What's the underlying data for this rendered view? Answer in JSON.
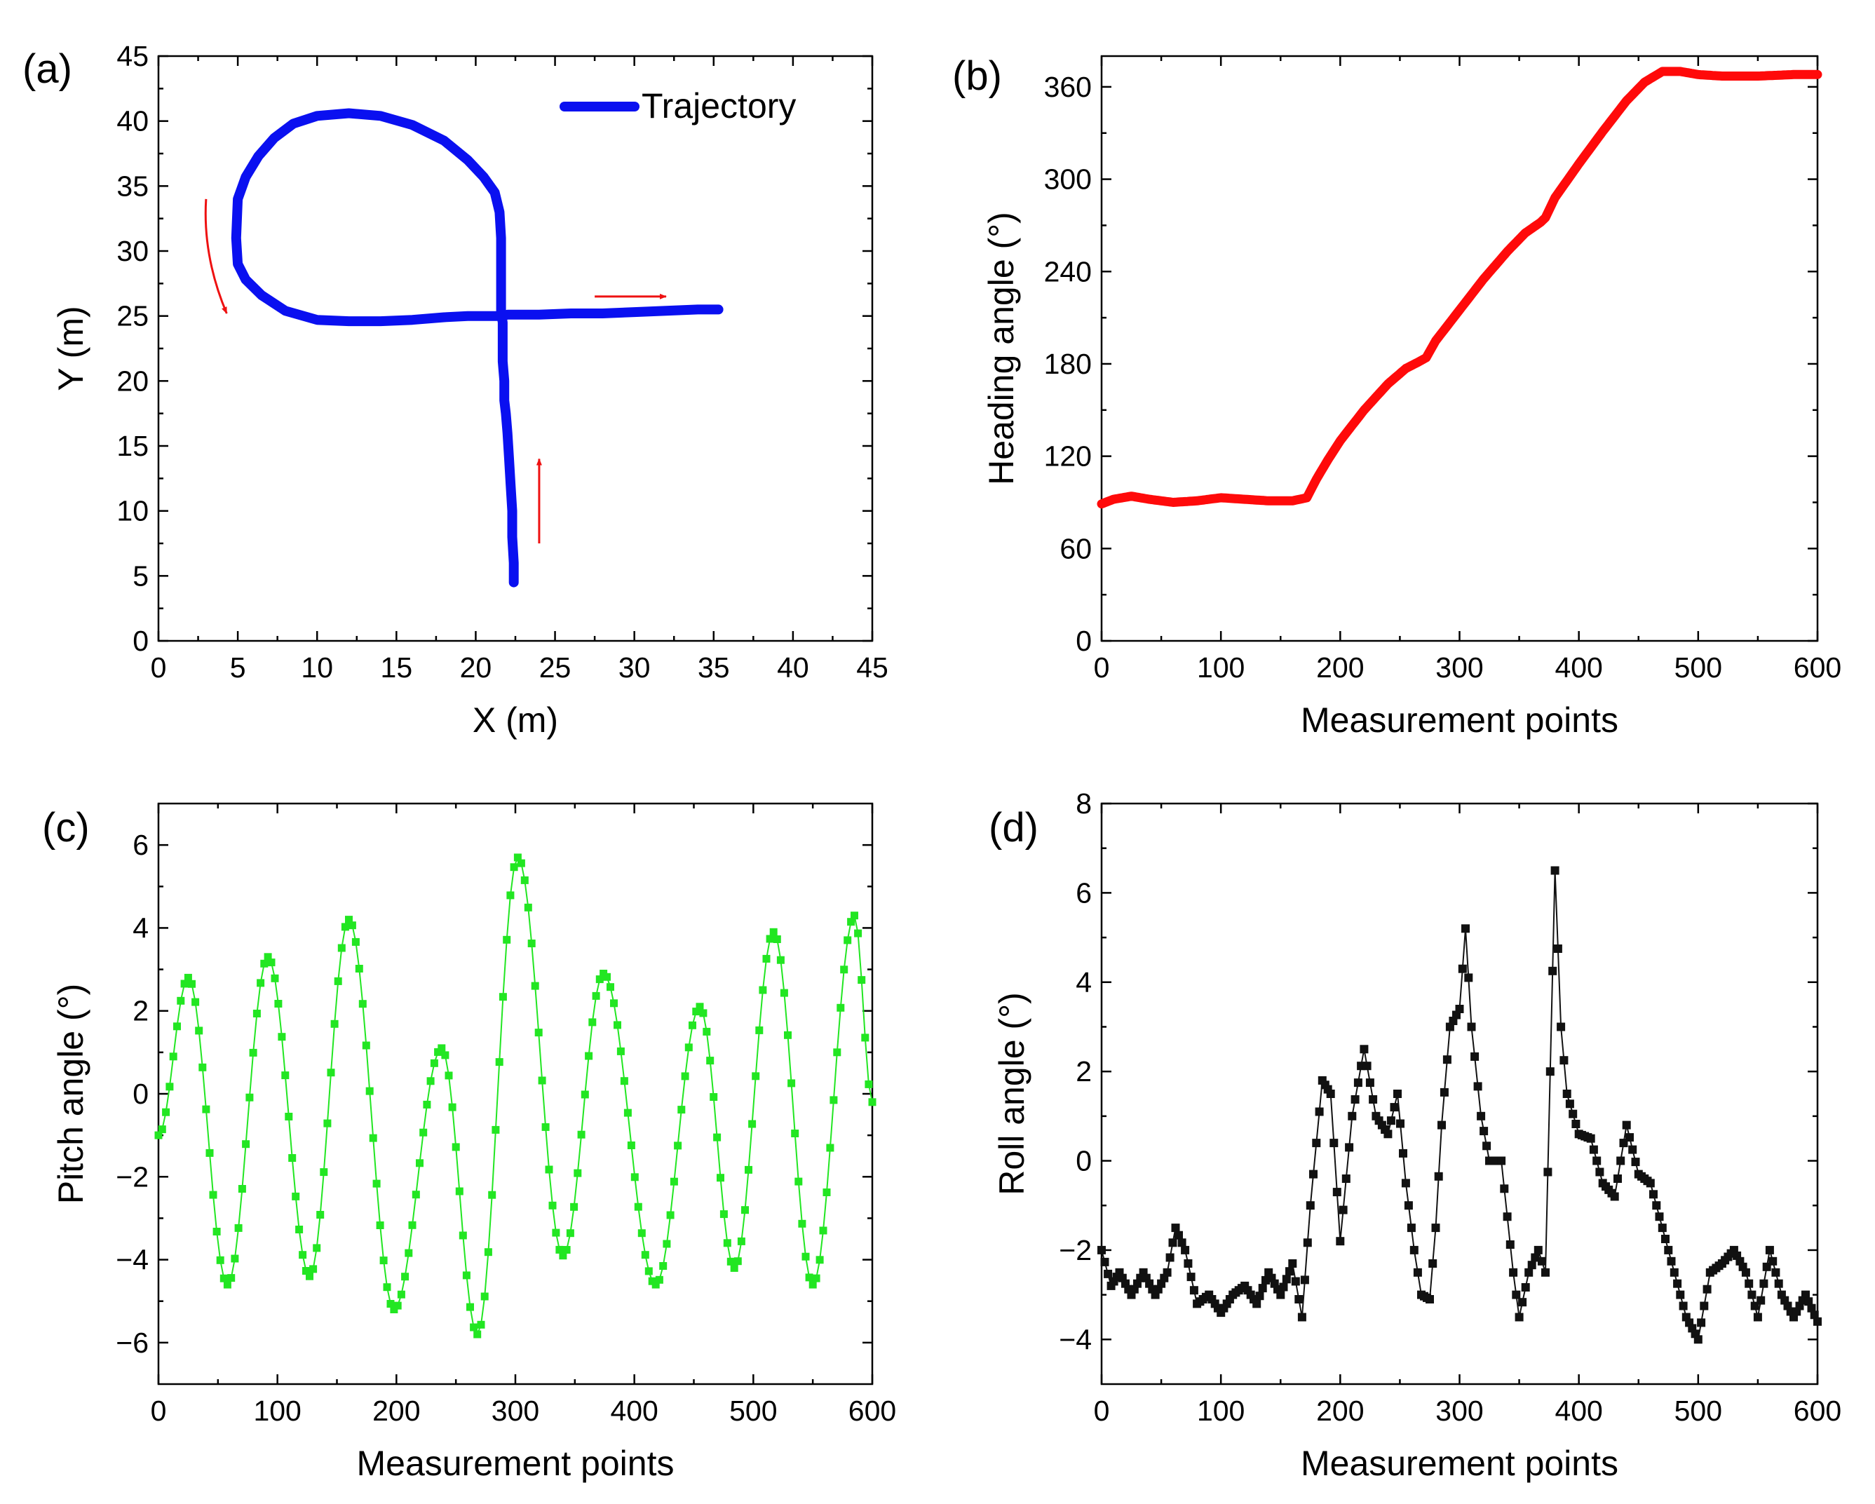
{
  "figure": {
    "panels": [
      "(a)",
      "(b)",
      "(c)",
      "(d)"
    ]
  },
  "colors": {
    "trajectory": "#0a10f0",
    "heading": "#ff0a0a",
    "pitch": "#22e622",
    "roll": "#111111",
    "arrow": "#ee1111"
  },
  "chart_data": [
    {
      "panel": "(a)",
      "type": "line",
      "title": "",
      "xlabel": "X (m)",
      "ylabel": "Y (m)",
      "xlim": [
        0,
        45
      ],
      "ylim": [
        0,
        45
      ],
      "xticks": [
        0,
        5,
        10,
        15,
        20,
        25,
        30,
        35,
        40,
        45
      ],
      "yticks": [
        0,
        5,
        10,
        15,
        20,
        25,
        30,
        35,
        40,
        45
      ],
      "legend": {
        "label": "Trajectory",
        "placement": "top-right"
      },
      "annotations": [
        {
          "type": "arrow",
          "meaning": "direction of travel",
          "x": [
            24,
            24
          ],
          "y": [
            7.5,
            14
          ]
        },
        {
          "type": "arrow",
          "meaning": "direction of travel",
          "x": [
            27.5,
            32
          ],
          "y": [
            26.5,
            26.5
          ]
        },
        {
          "type": "arrow",
          "meaning": "direction of travel (curved)",
          "x": [
            3,
            4.3
          ],
          "y": [
            34,
            25.2
          ]
        }
      ],
      "series": [
        {
          "name": "Trajectory",
          "x": [
            22.4,
            22.4,
            22.3,
            22.3,
            22.2,
            22.1,
            22.0,
            21.9,
            21.8,
            21.8,
            21.7,
            21.7,
            21.7,
            21.7,
            21.6,
            21.6,
            21.6,
            21.6,
            21.5,
            21.2,
            20.5,
            19.5,
            18.0,
            16.0,
            14.0,
            12.0,
            10.0,
            8.5,
            7.3,
            6.3,
            5.5,
            5.0,
            4.9,
            5.0,
            5.5,
            6.5,
            8.0,
            10.0,
            12.0,
            14.0,
            16.0,
            18.0,
            19.5,
            20.6,
            21.3,
            21.6,
            21.6,
            22.0,
            24.0,
            26.0,
            28.0,
            30.0,
            32.0,
            34.0,
            35.3
          ],
          "y": [
            4.5,
            6.0,
            8.0,
            10.0,
            12.0,
            14.0,
            16.0,
            17.5,
            18.5,
            20.0,
            21.5,
            22.5,
            23.5,
            24.5,
            25.3,
            27.0,
            29.0,
            31.0,
            33.0,
            34.5,
            35.7,
            37.0,
            38.5,
            39.7,
            40.4,
            40.6,
            40.4,
            39.8,
            38.7,
            37.3,
            35.7,
            34.0,
            31.0,
            29.0,
            27.8,
            26.6,
            25.4,
            24.7,
            24.6,
            24.6,
            24.7,
            24.9,
            25.0,
            25.0,
            25.0,
            25.0,
            25.0,
            25.1,
            25.1,
            25.2,
            25.2,
            25.3,
            25.4,
            25.5,
            25.5
          ]
        }
      ]
    },
    {
      "panel": "(b)",
      "type": "line",
      "title": "",
      "xlabel": "Measurement points",
      "ylabel": "Heading angle (°)",
      "xlim": [
        0,
        600
      ],
      "ylim": [
        0,
        380
      ],
      "xticks": [
        0,
        100,
        200,
        300,
        400,
        500,
        600
      ],
      "yticks": [
        0,
        60,
        120,
        180,
        240,
        300,
        360
      ],
      "series": [
        {
          "name": "Heading angle",
          "x": [
            0,
            10,
            25,
            40,
            60,
            80,
            100,
            120,
            140,
            160,
            172,
            180,
            190,
            200,
            220,
            240,
            255,
            265,
            272,
            280,
            300,
            320,
            340,
            355,
            368,
            372,
            380,
            400,
            420,
            440,
            455,
            470,
            485,
            500,
            520,
            550,
            580,
            600
          ],
          "y": [
            89,
            92,
            94,
            92,
            90,
            91,
            93,
            92,
            91,
            91,
            93,
            105,
            118,
            130,
            150,
            167,
            177,
            181,
            184,
            195,
            215,
            235,
            253,
            265,
            272,
            275,
            288,
            310,
            331,
            351,
            363,
            370,
            370,
            368,
            367,
            367,
            368,
            368
          ]
        }
      ]
    },
    {
      "panel": "(c)",
      "type": "line",
      "title": "",
      "xlabel": "Measurement points",
      "ylabel": "Pitch angle (°)",
      "xlim": [
        0,
        600
      ],
      "ylim": [
        -7,
        7
      ],
      "xticks": [
        0,
        100,
        200,
        300,
        400,
        500,
        600
      ],
      "yticks": [
        -6,
        -4,
        -2,
        0,
        2,
        4,
        6
      ],
      "series": [
        {
          "name": "Pitch angle",
          "x": [
            0,
            25,
            58,
            92,
            127,
            160,
            198,
            238,
            268,
            302,
            340,
            374,
            418,
            455,
            484,
            517,
            550,
            585,
            600
          ],
          "y": [
            -1.0,
            2.8,
            -4.6,
            3.3,
            -4.4,
            4.2,
            -5.2,
            1.1,
            -5.8,
            5.7,
            -3.9,
            2.9,
            -4.6,
            2.1,
            -4.2,
            3.9,
            -4.6,
            4.3,
            -0.2
          ]
        }
      ]
    },
    {
      "panel": "(d)",
      "type": "line",
      "title": "",
      "xlabel": "Measurement points",
      "ylabel": "Roll angle (°)",
      "xlim": [
        0,
        600
      ],
      "ylim": [
        -5,
        8
      ],
      "xticks": [
        0,
        100,
        200,
        300,
        400,
        500,
        600
      ],
      "yticks": [
        -4,
        -2,
        0,
        2,
        4,
        6,
        8
      ],
      "series": [
        {
          "name": "Roll angle",
          "x": [
            0,
            8,
            15,
            25,
            35,
            45,
            55,
            62,
            70,
            80,
            90,
            100,
            110,
            120,
            130,
            140,
            150,
            160,
            168,
            175,
            185,
            192,
            200,
            210,
            220,
            230,
            240,
            248,
            255,
            262,
            268,
            275,
            280,
            285,
            292,
            300,
            305,
            310,
            318,
            325,
            335,
            345,
            350,
            358,
            366,
            372,
            376,
            380,
            385,
            390,
            400,
            410,
            420,
            430,
            440,
            450,
            460,
            470,
            480,
            490,
            500,
            510,
            520,
            530,
            540,
            550,
            560,
            570,
            580,
            590,
            600
          ],
          "y": [
            -2.0,
            -2.8,
            -2.5,
            -3.0,
            -2.5,
            -3.0,
            -2.5,
            -1.5,
            -2.0,
            -3.2,
            -3.0,
            -3.4,
            -3.0,
            -2.8,
            -3.2,
            -2.5,
            -3.0,
            -2.3,
            -3.5,
            -1.0,
            1.8,
            1.5,
            -1.8,
            1.0,
            2.5,
            1.0,
            0.6,
            1.5,
            -0.5,
            -2.0,
            -3.0,
            -3.1,
            -1.5,
            0.8,
            3.0,
            3.4,
            5.2,
            3.0,
            1.0,
            0.0,
            0.0,
            -2.5,
            -3.5,
            -2.5,
            -2.0,
            -2.5,
            2.0,
            6.5,
            3.0,
            1.5,
            0.6,
            0.5,
            -0.5,
            -0.8,
            0.8,
            -0.3,
            -0.5,
            -1.5,
            -2.5,
            -3.5,
            -4.0,
            -2.5,
            -2.3,
            -2.0,
            -2.5,
            -3.5,
            -2.0,
            -3.0,
            -3.5,
            -3.0,
            -3.6
          ]
        }
      ]
    }
  ]
}
